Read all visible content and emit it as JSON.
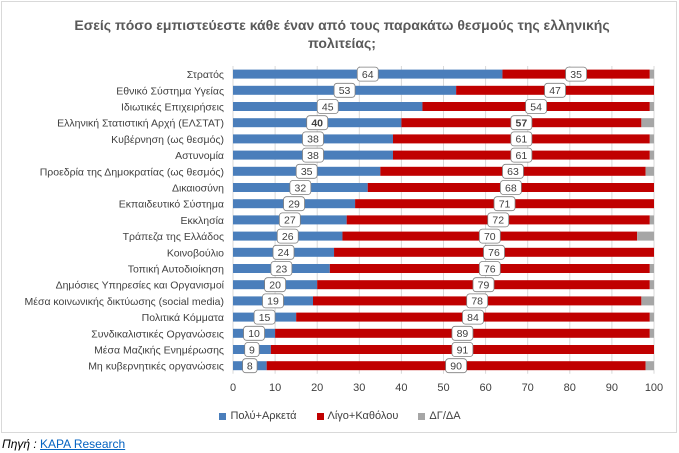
{
  "chart_data": {
    "type": "bar",
    "orientation": "horizontal",
    "stacked": true,
    "title": "Εσείς πόσο εμπιστεύεστε κάθε έναν από τους παρακάτω θεσμούς της ελληνικής πολιτείας;",
    "categories": [
      "Στρατός",
      "Εθνικό Σύστημα Υγείας",
      "Ιδιωτικές Επιχειρήσεις",
      "Ελληνική Στατιστική Αρχή (ΕΛΣΤΑΤ)",
      "Κυβέρνηση (ως θεσμός)",
      "Αστυνομία",
      "Προεδρία της Δημοκρατίας (ως θεσμός)",
      "Δικαιοσύνη",
      "Εκπαιδευτικό Σύστημα",
      "Εκκλησία",
      "Τράπεζα της Ελλάδος",
      "Κοινοβούλιο",
      "Τοπική Αυτοδιοίκηση",
      "Δημόσιες Υπηρεσίες και Οργανισμοί",
      "Μέσα κοινωνικής δικτύωσης (social media)",
      "Πολιτικά Κόμματα",
      "Συνδικαλιστικές Οργανώσεις",
      "Μέσα Μαζικής Ενημέρωσης",
      "Μη κυβερνητικές οργανώσεις"
    ],
    "series": [
      {
        "name": "Πολύ+Αρκετά",
        "color": "#4a7ebb",
        "values": [
          64,
          53,
          45,
          40,
          38,
          38,
          35,
          32,
          29,
          27,
          26,
          24,
          23,
          20,
          19,
          15,
          10,
          9,
          8
        ]
      },
      {
        "name": "Λίγο+Καθόλου",
        "color": "#c00000",
        "values": [
          35,
          47,
          54,
          57,
          61,
          61,
          63,
          68,
          71,
          72,
          70,
          76,
          76,
          79,
          78,
          84,
          89,
          91,
          90
        ]
      },
      {
        "name": "ΔΓ/ΔΑ",
        "color": "#a6a6a6",
        "values": [
          1,
          0,
          1,
          3,
          1,
          1,
          2,
          0,
          0,
          1,
          4,
          0,
          1,
          1,
          3,
          1,
          1,
          0,
          2
        ]
      }
    ],
    "bold_category_index": 3,
    "xlim": [
      0,
      100
    ],
    "xticks": [
      0,
      10,
      20,
      30,
      40,
      50,
      60,
      70,
      80,
      90,
      100
    ],
    "grid": true,
    "legend_position": "bottom"
  },
  "source": {
    "label": "Πηγή :",
    "link_text": "KAPA Research"
  }
}
